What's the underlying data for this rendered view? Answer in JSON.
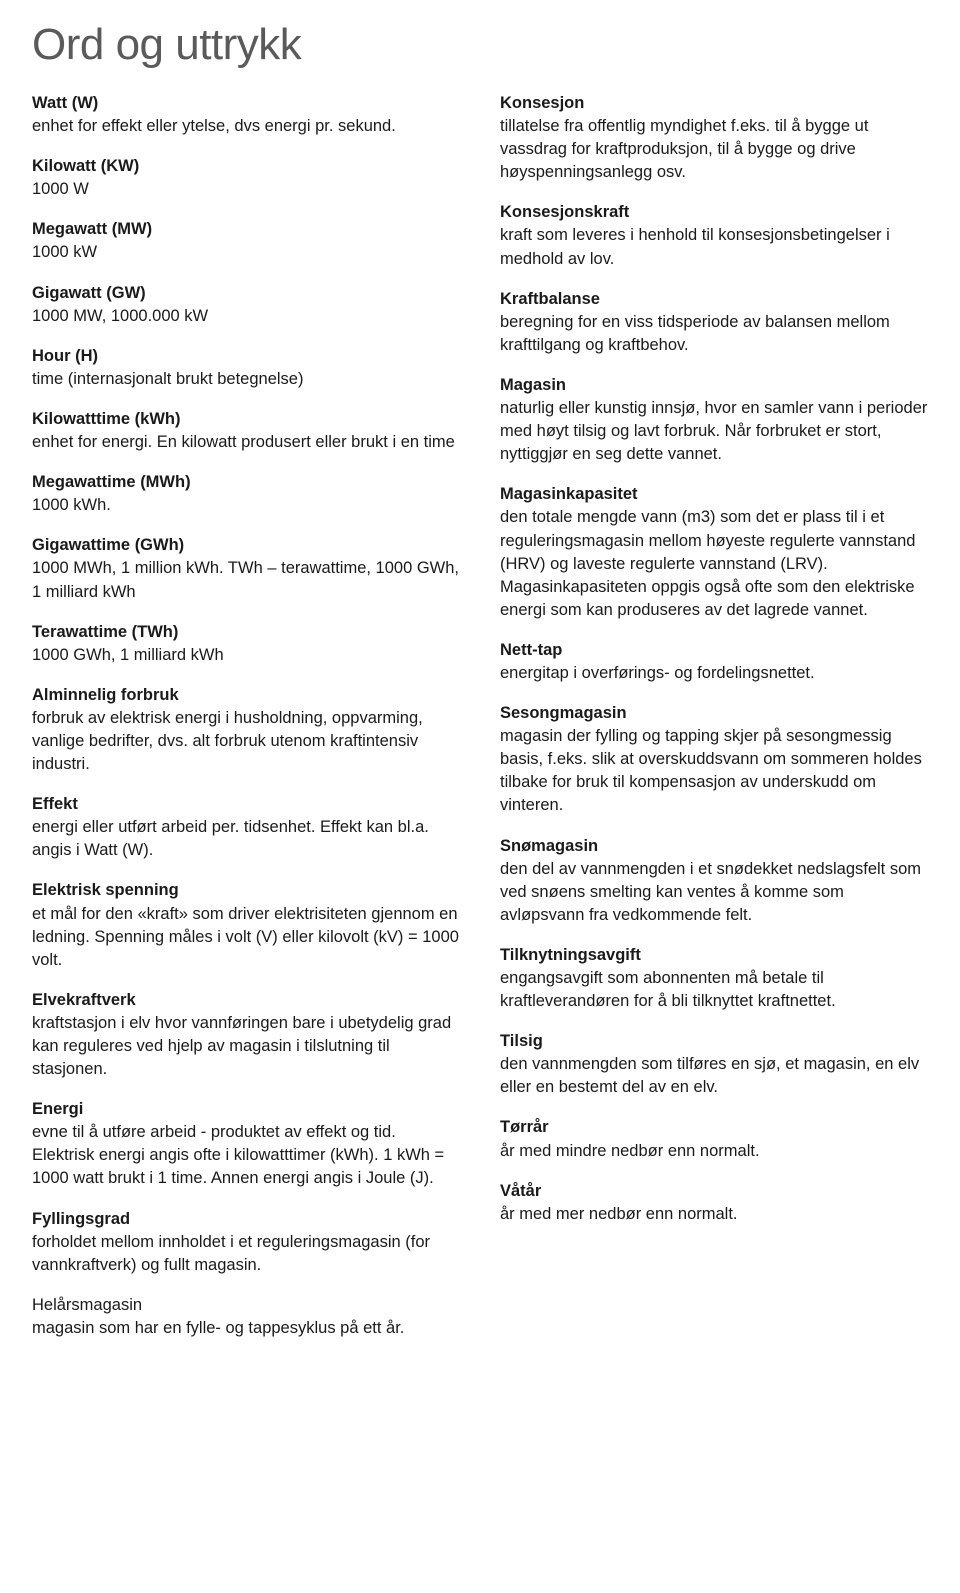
{
  "title": "Ord og uttrykk",
  "left": [
    {
      "term": "Watt (W)",
      "def": "enhet for effekt eller ytelse, dvs energi pr. sekund."
    },
    {
      "term": "Kilowatt (KW)",
      "def": "1000 W"
    },
    {
      "term": "Megawatt (MW)",
      "def": "1000 kW"
    },
    {
      "term": "Gigawatt (GW)",
      "def": "1000 MW, 1000.000 kW"
    },
    {
      "term": "Hour (H)",
      "def": "time (internasjonalt brukt betegnelse)"
    },
    {
      "term": "Kilowatttime (kWh)",
      "def": "enhet for energi. En kilowatt produsert eller brukt i en time"
    },
    {
      "term": "Megawattime (MWh)",
      "def": "1000 kWh."
    },
    {
      "term": "Gigawattime (GWh)",
      "def": "1000 MWh, 1 million kWh. TWh – terawattime, 1000 GWh, 1 milliard kWh"
    },
    {
      "term": "Terawattime (TWh)",
      "def": "1000 GWh, 1 milliard kWh"
    },
    {
      "term": "Alminnelig forbruk",
      "def": "forbruk av elektrisk energi i husholdning, oppvarming, vanlige bedrifter, dvs. alt forbruk utenom kraftintensiv industri."
    },
    {
      "term": "Effekt",
      "def": "energi eller utført arbeid per. tidsenhet. Effekt kan bl.a. angis i Watt (W)."
    },
    {
      "term": "Elektrisk spenning",
      "def": "et mål for den «kraft» som driver elektrisiteten gjennom en ledning. Spenning måles i volt (V) eller kilovolt (kV) = 1000 volt."
    },
    {
      "term": "Elvekraftverk",
      "def": "kraftstasjon i elv hvor vannføringen bare i ubetydelig grad kan reguleres ved hjelp av magasin i tilslutning til stasjonen."
    },
    {
      "term": "Energi",
      "def": "evne til å utføre arbeid - produktet av effekt og tid. Elektrisk energi angis ofte i kilowatttimer (kWh). 1 kWh = 1000 watt brukt i 1 time. Annen energi angis i Joule (J)."
    },
    {
      "term": "Fyllingsgrad",
      "def": "forholdet mellom innholdet i et reguleringsmagasin (for vannkraftverk) og fullt magasin."
    },
    {
      "term": "Helårsmagasin",
      "def": "magasin som har en fylle- og tappesyklus på ett år.",
      "plainTerm": true
    }
  ],
  "right": [
    {
      "term": "Konsesjon",
      "def": "tillatelse fra offentlig myndighet f.eks. til å bygge ut vassdrag for kraftproduksjon, til å bygge og drive høyspenningsanlegg osv."
    },
    {
      "term": "Konsesjonskraft",
      "def": "kraft som leveres i henhold til konsesjonsbetingelser i medhold av lov."
    },
    {
      "term": "Kraftbalanse",
      "def": "beregning for en viss tidsperiode av balansen mellom krafttilgang og kraftbehov."
    },
    {
      "term": "Magasin",
      "def": "naturlig eller kunstig innsjø, hvor en samler vann i perioder med høyt tilsig og lavt forbruk. Når forbruket er stort, nyttiggjør en seg dette vannet."
    },
    {
      "term": "Magasinkapasitet",
      "def": "den totale mengde vann (m3) som det er plass til i et reguleringsmagasin mellom høyeste regulerte vannstand (HRV) og laveste regulerte vannstand (LRV). Magasinkapasiteten oppgis også ofte som den elektriske energi som kan produseres av det lagrede vannet."
    },
    {
      "term": "Nett-tap",
      "def": "energitap i overførings- og fordelingsnettet."
    },
    {
      "term": "Sesongmagasin",
      "def": "magasin der fylling og tapping skjer på sesongmessig basis, f.eks. slik at overskuddsvann om sommeren holdes tilbake for bruk til kompensasjon av underskudd om vinteren."
    },
    {
      "term": "Snømagasin",
      "def": "den del av vannmengden i et snødekket nedslagsfelt som ved snøens smelting kan ventes å komme som avløpsvann fra vedkommende felt."
    },
    {
      "term": "Tilknytningsavgift",
      "def": "engangsavgift som abonnenten må betale til kraftleverandøren for å bli tilknyttet kraftnettet."
    },
    {
      "term": "Tilsig",
      "def": "den vannmengden som tilføres en sjø, et magasin, en elv eller en bestemt del av en elv."
    },
    {
      "term": "Tørrår",
      "def": "år med mindre nedbør enn normalt."
    },
    {
      "term": "Våtår",
      "def": "år med mer nedbør enn normalt."
    }
  ],
  "style": {
    "title_color": "#5a5a5a",
    "text_color": "#1a1a1a",
    "background": "#ffffff",
    "title_fontsize": 44,
    "body_fontsize": 16.5,
    "line_height": 1.4
  }
}
